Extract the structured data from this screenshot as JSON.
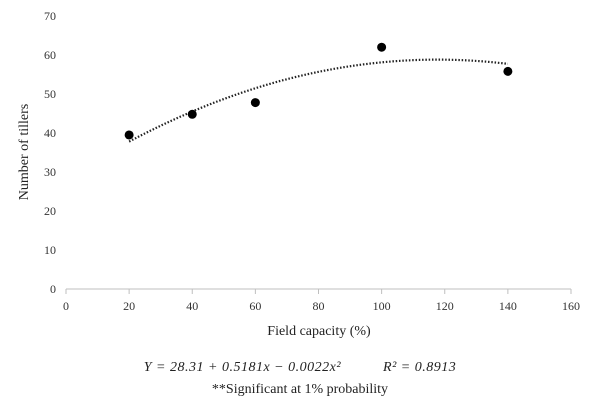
{
  "chart_data": {
    "type": "scatter",
    "xlabel": "Field capacity (%)",
    "ylabel": "Number of tillers",
    "xlim": [
      0,
      160
    ],
    "ylim": [
      0,
      70
    ],
    "xticks": [
      0,
      20,
      40,
      60,
      80,
      100,
      120,
      140,
      160
    ],
    "yticks": [
      0,
      10,
      20,
      30,
      40,
      50,
      60,
      70
    ],
    "grid": false,
    "points": [
      {
        "x": 20,
        "y": 39.5
      },
      {
        "x": 40,
        "y": 44.8
      },
      {
        "x": 60,
        "y": 47.8
      },
      {
        "x": 100,
        "y": 62
      },
      {
        "x": 140,
        "y": 55.8
      }
    ],
    "trendline": {
      "type": "polynomial",
      "coefficients": [
        28.31,
        0.5181,
        -0.0022
      ],
      "x_range": [
        20,
        140
      ],
      "style": "dotted"
    },
    "equation": {
      "formula": "Y = 28.31 + 0.5181x − 0.0022x²",
      "r_squared": "R² = 0.8913"
    },
    "note": "**Significant at 1% probability"
  }
}
